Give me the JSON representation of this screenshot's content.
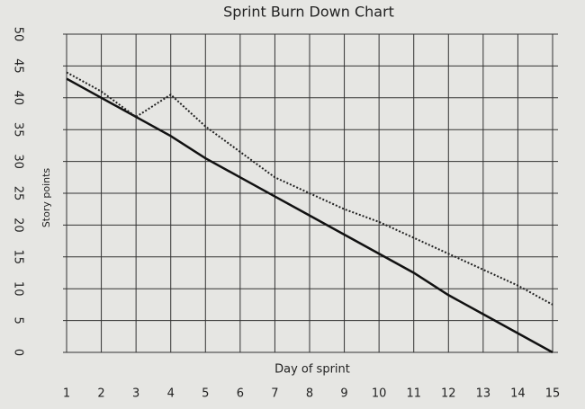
{
  "chart_data": {
    "type": "line",
    "title": "Sprint Burn Down Chart",
    "x_label": "Day of sprint",
    "y_label": "Story points",
    "x": [
      1,
      2,
      3,
      4,
      5,
      6,
      7,
      8,
      9,
      10,
      11,
      12,
      13,
      14,
      15
    ],
    "series": [
      {
        "color": "#111111",
        "style": "solid",
        "values": [
          43,
          40,
          37,
          34,
          30.5,
          27.5,
          24.5,
          21.5,
          18.5,
          15.5,
          12.5,
          9,
          6,
          3,
          0
        ]
      },
      {
        "color": "#222222",
        "style": "dotted",
        "values": [
          44,
          41,
          37,
          40.5,
          35.5,
          31.5,
          27.5,
          25,
          22.5,
          20.5,
          18,
          15.5,
          13,
          10.5,
          7.5
        ]
      }
    ],
    "xlim": [
      1,
      15
    ],
    "xticks": [
      1,
      2,
      3,
      4,
      5,
      6,
      7,
      8,
      9,
      10,
      11,
      12,
      13,
      14,
      15
    ],
    "ylim": [
      0,
      50
    ],
    "yticks": [
      0,
      5,
      10,
      15,
      20,
      25,
      30,
      35,
      40,
      45,
      50
    ],
    "grid": true
  }
}
